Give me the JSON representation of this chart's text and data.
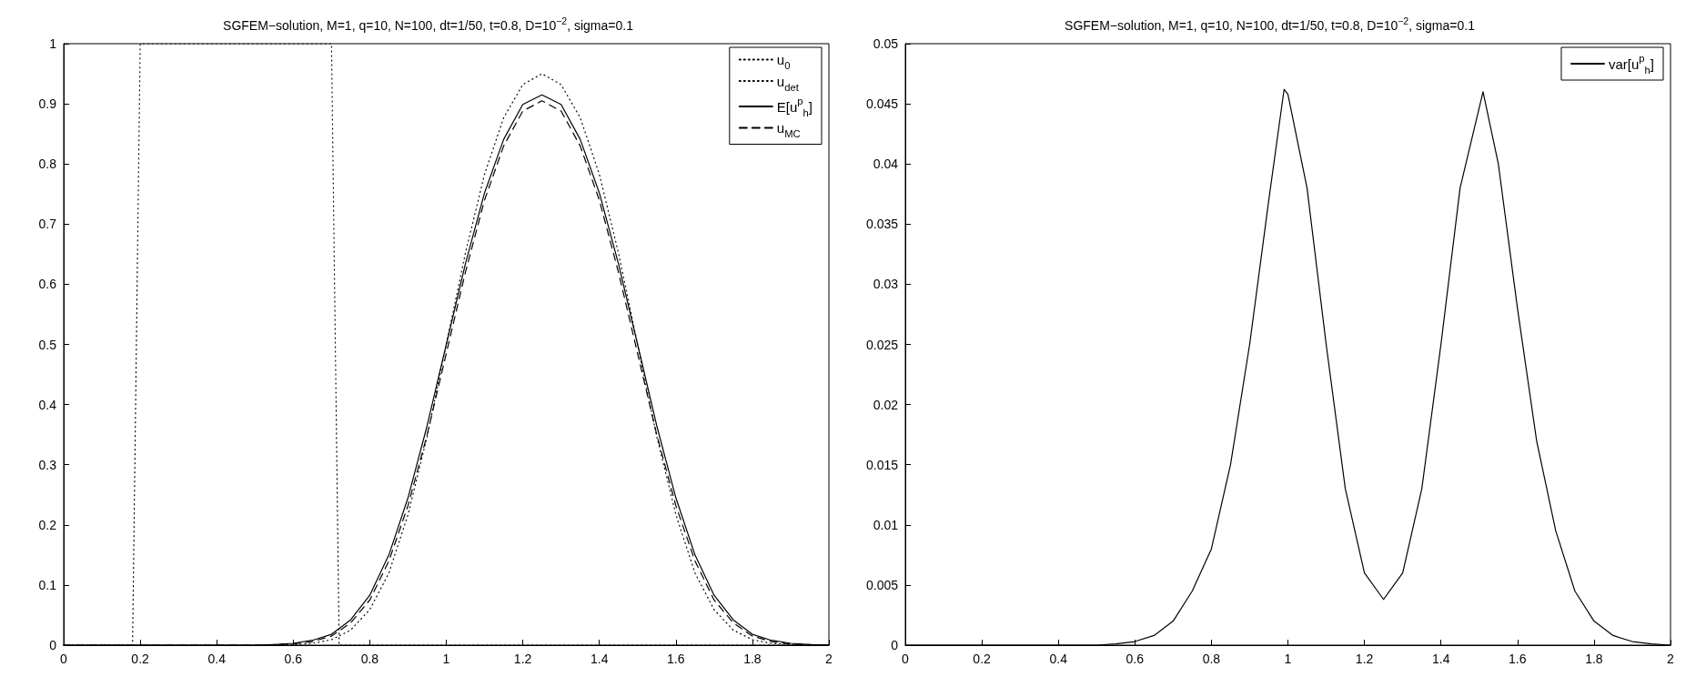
{
  "chart_data": [
    {
      "type": "line",
      "title": "SGFEM−solution, M=1, q=10, N=100, dt=1/50, t=0.8, D=10$^{−2}$, sigma=0.1",
      "xlim": [
        0,
        2
      ],
      "ylim": [
        0,
        1
      ],
      "xticks": [
        0,
        0.2,
        0.4,
        0.6,
        0.8,
        1,
        1.2,
        1.4,
        1.6,
        1.8,
        2
      ],
      "yticks": [
        0,
        0.1,
        0.2,
        0.3,
        0.4,
        0.5,
        0.6,
        0.7,
        0.8,
        0.9,
        1
      ],
      "grid": false,
      "legend": "top right",
      "series": [
        {
          "name": "u$_{0}$",
          "color": "#000000",
          "line_style": "dotted",
          "x": [
            0,
            0.18,
            0.2,
            0.7,
            0.72,
            2
          ],
          "values": [
            0,
            0,
            1,
            1,
            0,
            0
          ]
        },
        {
          "name": "u$_{det}$",
          "color": "#000000",
          "line_style": "dotted",
          "x": [
            0,
            0.5,
            0.6,
            0.65,
            0.7,
            0.75,
            0.8,
            0.85,
            0.9,
            0.95,
            1,
            1.05,
            1.1,
            1.15,
            1.2,
            1.25,
            1.3,
            1.35,
            1.4,
            1.45,
            1.5,
            1.55,
            1.6,
            1.65,
            1.7,
            1.75,
            1.8,
            1.85,
            1.9,
            2
          ],
          "values": [
            0,
            0,
            0.001,
            0.003,
            0.009,
            0.025,
            0.059,
            0.12,
            0.217,
            0.347,
            0.5,
            0.652,
            0.783,
            0.877,
            0.932,
            0.95,
            0.932,
            0.877,
            0.783,
            0.652,
            0.5,
            0.347,
            0.217,
            0.12,
            0.059,
            0.025,
            0.009,
            0.003,
            0.001,
            0
          ]
        },
        {
          "name": "E[u$^{p}$$_{h}$]",
          "color": "#000000",
          "line_style": "solid",
          "x": [
            0,
            0.5,
            0.55,
            0.6,
            0.65,
            0.7,
            0.75,
            0.8,
            0.85,
            0.9,
            0.95,
            1,
            1.05,
            1.1,
            1.15,
            1.2,
            1.25,
            1.3,
            1.35,
            1.4,
            1.45,
            1.5,
            1.55,
            1.6,
            1.65,
            1.7,
            1.75,
            1.8,
            1.85,
            1.9,
            1.95,
            2
          ],
          "values": [
            0,
            0,
            0.001,
            0.003,
            0.008,
            0.018,
            0.042,
            0.083,
            0.15,
            0.245,
            0.365,
            0.5,
            0.634,
            0.752,
            0.841,
            0.899,
            0.915,
            0.899,
            0.841,
            0.752,
            0.634,
            0.5,
            0.365,
            0.245,
            0.15,
            0.083,
            0.042,
            0.018,
            0.008,
            0.003,
            0.001,
            0
          ]
        },
        {
          "name": "u$_{MC}$",
          "color": "#000000",
          "line_style": "dashed",
          "x": [
            0,
            0.5,
            0.55,
            0.6,
            0.65,
            0.7,
            0.75,
            0.8,
            0.85,
            0.9,
            0.95,
            1,
            1.05,
            1.1,
            1.15,
            1.2,
            1.25,
            1.3,
            1.35,
            1.4,
            1.45,
            1.5,
            1.55,
            1.6,
            1.65,
            1.7,
            1.75,
            1.8,
            1.85,
            1.9,
            1.95,
            2
          ],
          "values": [
            0,
            0,
            0.001,
            0.002,
            0.006,
            0.015,
            0.037,
            0.075,
            0.14,
            0.232,
            0.35,
            0.485,
            0.62,
            0.74,
            0.83,
            0.888,
            0.905,
            0.888,
            0.83,
            0.74,
            0.62,
            0.485,
            0.35,
            0.232,
            0.14,
            0.075,
            0.037,
            0.015,
            0.006,
            0.002,
            0.001,
            0
          ]
        }
      ]
    },
    {
      "type": "line",
      "title": "SGFEM−solution, M=1, q=10, N=100, dt=1/50, t=0.8, D=10$^{−2}$, sigma=0.1",
      "xlim": [
        0,
        2
      ],
      "ylim": [
        0,
        0.05
      ],
      "xticks": [
        0,
        0.2,
        0.4,
        0.6,
        0.8,
        1,
        1.2,
        1.4,
        1.6,
        1.8,
        2
      ],
      "yticks": [
        0,
        0.005,
        0.01,
        0.015,
        0.02,
        0.025,
        0.03,
        0.035,
        0.04,
        0.045,
        0.05
      ],
      "grid": false,
      "legend": "top right",
      "series": [
        {
          "name": "var[u$^{p}$$_{h}$]",
          "color": "#000000",
          "line_style": "solid",
          "x": [
            0,
            0.5,
            0.55,
            0.6,
            0.65,
            0.7,
            0.75,
            0.8,
            0.85,
            0.9,
            0.95,
            0.99,
            1,
            1.05,
            1.1,
            1.15,
            1.2,
            1.25,
            1.3,
            1.35,
            1.4,
            1.45,
            1.51,
            1.55,
            1.6,
            1.65,
            1.7,
            1.75,
            1.8,
            1.85,
            1.9,
            1.95,
            2
          ],
          "values": [
            0,
            0,
            0.0001,
            0.0003,
            0.0008,
            0.002,
            0.0045,
            0.008,
            0.015,
            0.025,
            0.037,
            0.0462,
            0.0458,
            0.038,
            0.025,
            0.013,
            0.006,
            0.0038,
            0.006,
            0.013,
            0.025,
            0.038,
            0.046,
            0.04,
            0.028,
            0.017,
            0.0095,
            0.0045,
            0.002,
            0.0008,
            0.0003,
            0.0001,
            0
          ]
        }
      ]
    }
  ]
}
